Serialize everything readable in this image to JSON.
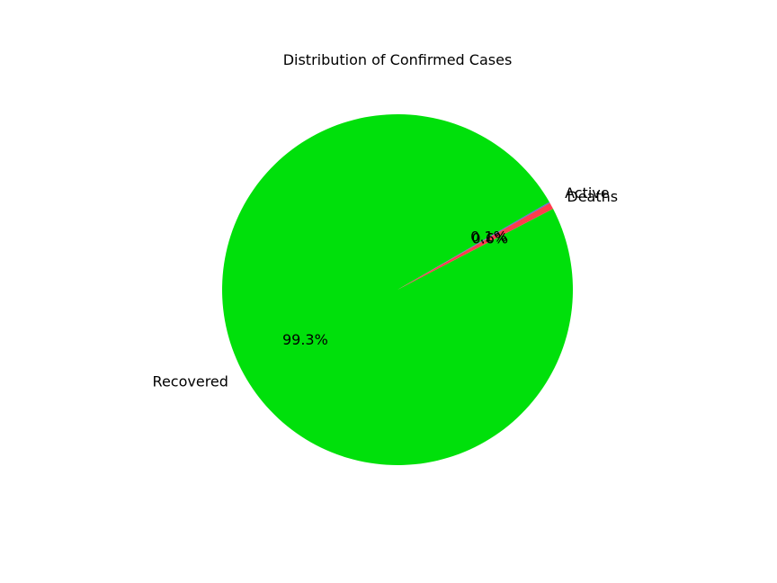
{
  "chart_data": {
    "type": "pie",
    "title": "Distribution of Confirmed Cases",
    "slices": [
      {
        "label": "Recovered",
        "percent": 99.3,
        "percent_label": "99.3%",
        "color": "#00e00b"
      },
      {
        "label": "Deaths",
        "percent": 0.6,
        "percent_label": "0.6%",
        "color": "#ff3d4d"
      },
      {
        "label": "Active",
        "percent": 0.1,
        "percent_label": "0.1%",
        "color": "#5b6ad0"
      }
    ]
  }
}
